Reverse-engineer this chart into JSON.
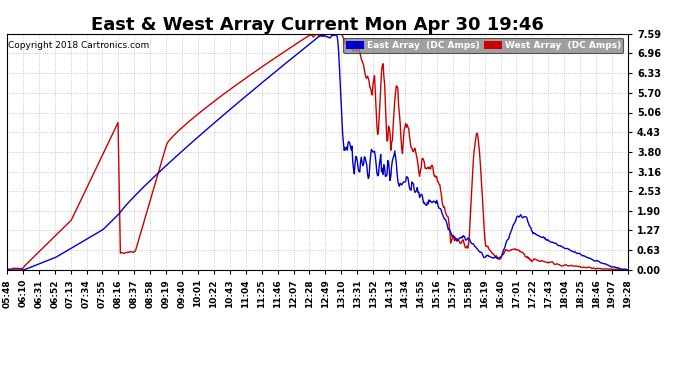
{
  "title": "East & West Array Current Mon Apr 30 19:46",
  "copyright": "Copyright 2018 Cartronics.com",
  "legend_east": "East Array  (DC Amps)",
  "legend_west": "West Array  (DC Amps)",
  "east_color": "#0000cc",
  "west_color": "#cc0000",
  "background_color": "#ffffff",
  "plot_background": "#ffffff",
  "grid_color": "#bbbbbb",
  "yticks": [
    0.0,
    0.63,
    1.27,
    1.9,
    2.53,
    3.16,
    3.8,
    4.43,
    5.06,
    5.7,
    6.33,
    6.96,
    7.59
  ],
  "ylim": [
    0.0,
    7.59
  ],
  "xtick_labels": [
    "05:48",
    "06:10",
    "06:31",
    "06:52",
    "07:13",
    "07:34",
    "07:55",
    "08:16",
    "08:37",
    "08:58",
    "09:19",
    "09:40",
    "10:01",
    "10:22",
    "10:43",
    "11:04",
    "11:25",
    "11:46",
    "12:07",
    "12:28",
    "12:49",
    "13:10",
    "13:31",
    "13:52",
    "14:13",
    "14:34",
    "14:55",
    "15:16",
    "15:37",
    "15:58",
    "16:19",
    "16:40",
    "17:01",
    "17:22",
    "17:43",
    "18:04",
    "18:25",
    "18:46",
    "19:07",
    "19:28"
  ],
  "title_fontsize": 13,
  "tick_fontsize": 7,
  "linewidth": 1.0
}
